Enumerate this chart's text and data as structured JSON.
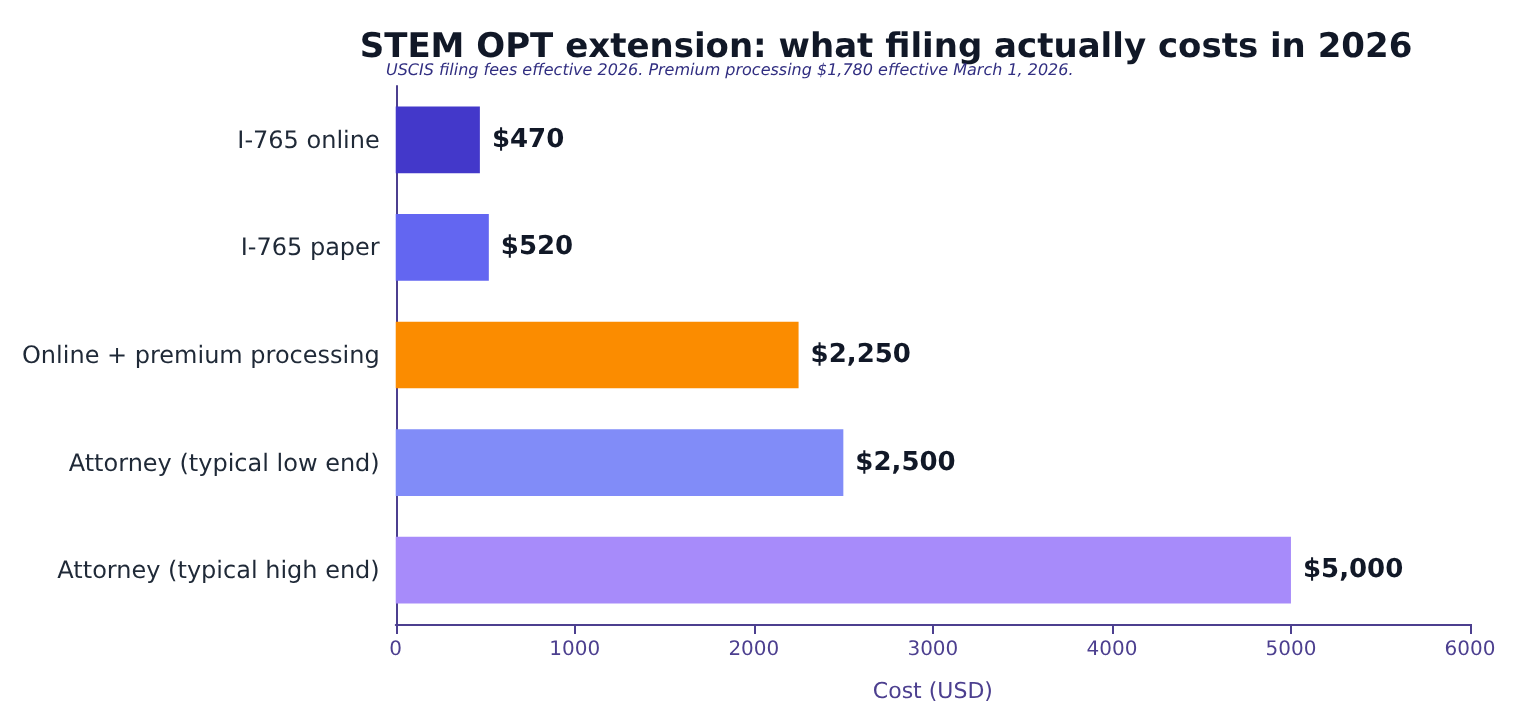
{
  "chart_data": {
    "type": "bar",
    "orientation": "horizontal",
    "title": "STEM OPT extension: what filing actually costs in 2026",
    "subtitle": "USCIS filing fees effective 2026. Premium processing $1,780 effective March 1, 2026.",
    "xlabel": "Cost (USD)",
    "categories": [
      "I-765 online",
      "I-765 paper",
      "Online + premium processing",
      "Attorney (typical low end)",
      "Attorney (typical high end)"
    ],
    "values": [
      470,
      520,
      2250,
      2500,
      5000
    ],
    "colors": [
      "#4338ca",
      "#6366f1",
      "#fb8c00",
      "#818cf8",
      "#a78bfa"
    ],
    "value_labels": [
      "$470",
      "$520",
      "$2,250",
      "$2,500",
      "$5,000"
    ],
    "xlim": [
      0,
      6000
    ],
    "xticks": [
      0,
      1000,
      2000,
      3000,
      4000,
      5000,
      6000
    ],
    "grid": false
  }
}
